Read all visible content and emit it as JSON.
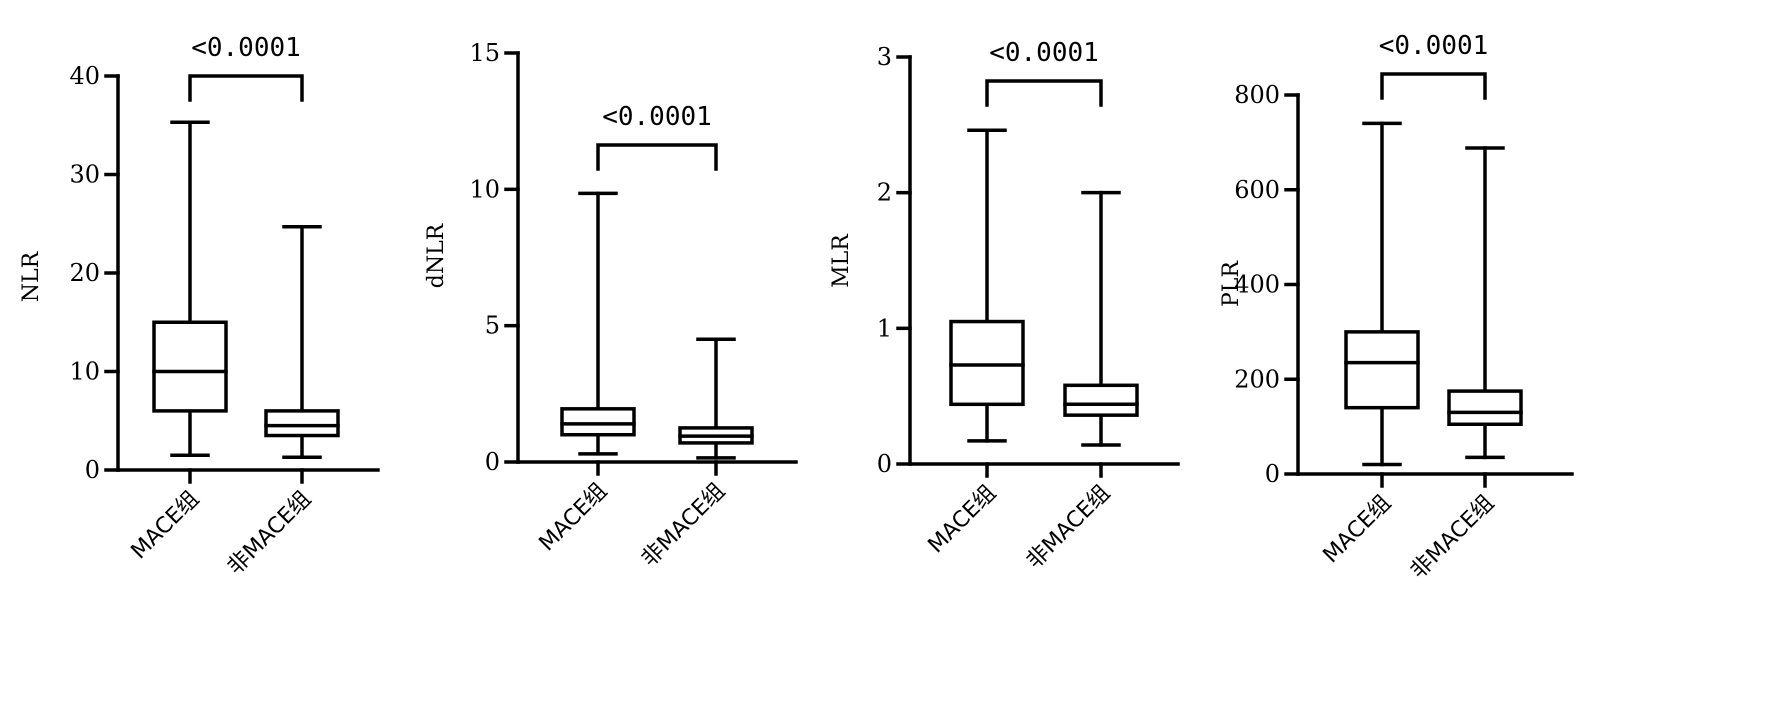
{
  "chart_data": [
    {
      "type": "box",
      "ylabel": "NLR",
      "ylim": [
        0,
        40
      ],
      "yticks": [
        0,
        10,
        20,
        30,
        40
      ],
      "categories": [
        "MACE组",
        "非MACE组"
      ],
      "boxes": [
        {
          "min": 1.5,
          "q1": 6,
          "median": 10,
          "q3": 15,
          "max": 35.3
        },
        {
          "min": 1.3,
          "q1": 3.5,
          "median": 4.5,
          "q3": 6,
          "max": 24.7
        }
      ],
      "significance": "<0.0001"
    },
    {
      "type": "box",
      "ylabel": "dNLR",
      "ylim": [
        0,
        15
      ],
      "yticks": [
        0,
        5,
        10,
        15
      ],
      "categories": [
        "MACE组",
        "非MACE组"
      ],
      "boxes": [
        {
          "min": 0.3,
          "q1": 1.0,
          "median": 1.4,
          "q3": 1.95,
          "max": 9.85
        },
        {
          "min": 0.15,
          "q1": 0.7,
          "median": 0.95,
          "q3": 1.25,
          "max": 4.5
        }
      ],
      "significance": "<0.0001"
    },
    {
      "type": "box",
      "ylabel": "MLR",
      "ylim": [
        0,
        3
      ],
      "yticks": [
        0,
        1,
        2,
        3
      ],
      "categories": [
        "MACE组",
        "非MACE组"
      ],
      "boxes": [
        {
          "min": 0.17,
          "q1": 0.44,
          "median": 0.73,
          "q3": 1.05,
          "max": 2.46
        },
        {
          "min": 0.14,
          "q1": 0.36,
          "median": 0.44,
          "q3": 0.58,
          "max": 2.0
        }
      ],
      "significance": "<0.0001"
    },
    {
      "type": "box",
      "ylabel": "PLR",
      "ylim": [
        0,
        800
      ],
      "yticks": [
        0,
        200,
        400,
        600,
        800
      ],
      "categories": [
        "MACE组",
        "非MACE组"
      ],
      "boxes": [
        {
          "min": 20,
          "q1": 140,
          "median": 235,
          "q3": 300,
          "max": 740
        },
        {
          "min": 35,
          "q1": 105,
          "median": 130,
          "q3": 175,
          "max": 688
        }
      ],
      "significance": "<0.0001"
    }
  ]
}
